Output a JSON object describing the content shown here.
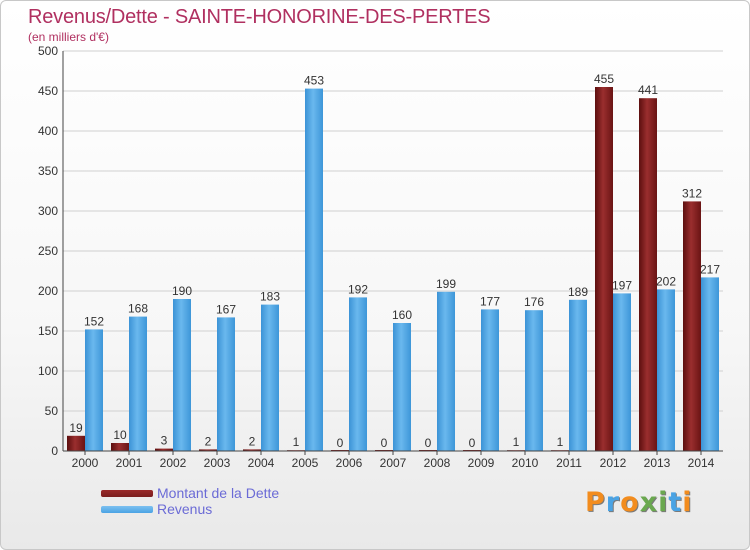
{
  "title": "Revenus/Dette - SAINTE-HONORINE-DES-PERTES",
  "subtitle": "(en milliers d'€)",
  "colors": {
    "dette": "#7a1e1e",
    "revenus": "#4aa3e4",
    "title": "#b03060",
    "legend_text": "#6b6bd6",
    "grid": "#d0d0d0"
  },
  "legend": [
    {
      "label": "Montant de la Dette",
      "color": "#7a1e1e"
    },
    {
      "label": "Revenus",
      "color": "#4aa3e4"
    }
  ],
  "logo": {
    "text": "Proxiti",
    "letter_colors": [
      "#f28c1e",
      "#4aa3e4",
      "#f28c1e",
      "#6aa84f",
      "#6aa84f",
      "#4aa3e4",
      "#f28c1e"
    ]
  },
  "chart_data": {
    "type": "bar",
    "title": "Revenus/Dette - SAINTE-HONORINE-DES-PERTES",
    "subtitle": "(en milliers d'€)",
    "categories": [
      "2000",
      "2001",
      "2002",
      "2003",
      "2004",
      "2005",
      "2006",
      "2007",
      "2008",
      "2009",
      "2010",
      "2011",
      "2012",
      "2013",
      "2014"
    ],
    "series": [
      {
        "name": "Montant de la Dette",
        "values": [
          19,
          10,
          3,
          2,
          2,
          1,
          0,
          0,
          0,
          0,
          1,
          1,
          455,
          441,
          312
        ]
      },
      {
        "name": "Revenus",
        "values": [
          152,
          168,
          190,
          167,
          183,
          453,
          192,
          160,
          199,
          177,
          176,
          189,
          197,
          202,
          217
        ]
      }
    ],
    "ylim": [
      0,
      500
    ],
    "yticks": [
      0,
      50,
      100,
      150,
      200,
      250,
      300,
      350,
      400,
      450,
      500
    ],
    "grid": true,
    "legend_position": "bottom-left"
  }
}
